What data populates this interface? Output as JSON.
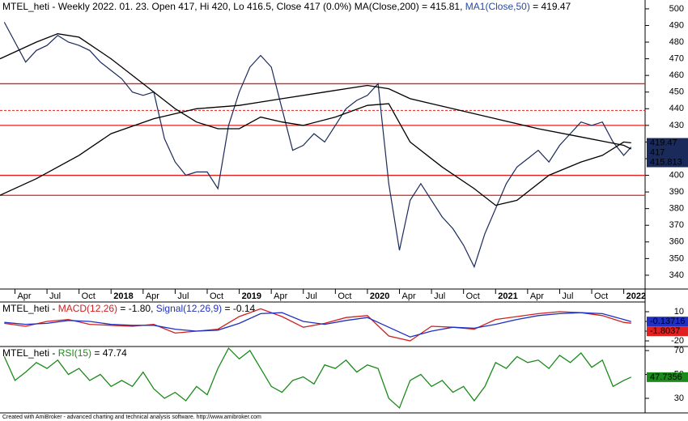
{
  "chart_data": [
    {
      "type": "line",
      "title": [
        "MTEL_heti - Weekly 2022. 01. 23. Open 417, Hi 420, Lo 416.5, Close 417 (0.0%) MA(Close,200) = 415.81, ",
        "MA1(Close,50)",
        " = 419.47"
      ],
      "title_colors": [
        "#000000",
        "#2a4aa0",
        "#000000"
      ],
      "xlim": [
        1.6,
        62
      ],
      "xticks": [
        {
          "value": 3,
          "label": "Apr"
        },
        {
          "value": 6,
          "label": "Jul"
        },
        {
          "value": 9,
          "label": "Oct"
        },
        {
          "value": 12,
          "label": "2018"
        },
        {
          "value": 15,
          "label": "Apr"
        },
        {
          "value": 18,
          "label": "Jul"
        },
        {
          "value": 21,
          "label": "Oct"
        },
        {
          "value": 24,
          "label": "2019"
        },
        {
          "value": 27,
          "label": "Apr"
        },
        {
          "value": 30,
          "label": "Jul"
        },
        {
          "value": 33,
          "label": "Oct"
        },
        {
          "value": 36,
          "label": "2020"
        },
        {
          "value": 39,
          "label": "Apr"
        },
        {
          "value": 42,
          "label": "Jul"
        },
        {
          "value": 45,
          "label": "Oct"
        },
        {
          "value": 48,
          "label": "2021"
        },
        {
          "value": 51,
          "label": "Apr"
        },
        {
          "value": 54,
          "label": "Jul"
        },
        {
          "value": 57,
          "label": "Oct"
        },
        {
          "value": 60,
          "label": "2022"
        }
      ],
      "ylim": [
        331.7,
        505.3
      ],
      "yticks": [
        340,
        350,
        360,
        370,
        380,
        390,
        400,
        410,
        420,
        430,
        440,
        450,
        460,
        470,
        480,
        490,
        500
      ],
      "hlines": [
        455,
        430,
        400,
        388
      ],
      "hline_color": "#e02020",
      "dashed_hlines": [
        439
      ],
      "series": [
        {
          "color": "#1a2a5a",
          "x": [
            2,
            3,
            4,
            5,
            6,
            7,
            8,
            9,
            10,
            11,
            12,
            13,
            14,
            15,
            16,
            17,
            18,
            19,
            20,
            21,
            22,
            23,
            24,
            25,
            26,
            27,
            28,
            29,
            30,
            31,
            32,
            33,
            34,
            35,
            36,
            37,
            38,
            39,
            40,
            41,
            42,
            43,
            44,
            45,
            46,
            47,
            48,
            49,
            50,
            51,
            52,
            53,
            54,
            55,
            56,
            57,
            58,
            59,
            60,
            60.7
          ],
          "values": [
            492,
            480,
            468,
            475,
            478,
            484,
            480,
            478,
            475,
            468,
            463,
            458,
            450,
            448,
            450,
            422,
            408,
            400,
            402,
            402,
            392,
            430,
            450,
            465,
            472,
            465,
            440,
            415,
            418,
            425,
            420,
            430,
            440,
            445,
            448,
            455,
            395,
            355,
            385,
            395,
            385,
            375,
            368,
            358,
            345,
            365,
            380,
            395,
            405,
            410,
            415,
            408,
            418,
            425,
            432,
            430,
            432,
            420,
            412,
            417
          ]
        },
        {
          "color": "#000000",
          "x": [
            1.6,
            5,
            9,
            12,
            16,
            20,
            24,
            28,
            32,
            36,
            38,
            40,
            44,
            48,
            52,
            56,
            60,
            60.7
          ],
          "values": [
            388,
            398,
            412,
            425,
            434,
            440,
            442,
            446,
            450,
            454,
            452,
            446,
            440,
            434,
            428,
            423,
            418,
            415.8
          ]
        },
        {
          "color": "#000000",
          "x": [
            1.6,
            5,
            7,
            9,
            12,
            15,
            18,
            20,
            22,
            24,
            26,
            28,
            30,
            33,
            36,
            38,
            40,
            43,
            46,
            48,
            50,
            53,
            56,
            58,
            60,
            60.7
          ],
          "values": [
            470,
            480,
            485,
            483,
            470,
            455,
            440,
            432,
            428,
            428,
            435,
            432,
            430,
            435,
            442,
            443,
            420,
            405,
            392,
            382,
            385,
            400,
            408,
            412,
            420,
            419.5
          ]
        }
      ],
      "last_values": [
        419.47,
        417,
        415.813
      ],
      "last_value_color": "#1a2a5a"
    },
    {
      "type": "line",
      "title": [
        "MTEL_heti - ",
        "MACD(12,26)",
        " = -1.80, ",
        "Signal(12,26,9)",
        " = -0.14"
      ],
      "title_colors": [
        "#000000",
        "#d02020",
        "#000000",
        "#2030c0",
        "#000000"
      ],
      "xlim": [
        1.6,
        62
      ],
      "ylim": [
        -25.8,
        20
      ],
      "yticks": [
        -20,
        -10,
        0,
        10
      ],
      "series": [
        {
          "color": "#d02020",
          "x": [
            2,
            4,
            6,
            8,
            10,
            12,
            14,
            16,
            18,
            20,
            22,
            24,
            26,
            28,
            30,
            32,
            34,
            36,
            38,
            40,
            42,
            44,
            46,
            48,
            50,
            52,
            54,
            56,
            58,
            60,
            60.7
          ],
          "values": [
            -2,
            -5,
            0,
            2,
            -3,
            -4,
            -5,
            -3,
            -12,
            -10,
            -8,
            5,
            13,
            5,
            -6,
            -2,
            4,
            6,
            -15,
            -20,
            -5,
            -6,
            -8,
            2,
            5,
            8,
            10,
            9,
            6,
            -1,
            -1.8
          ]
        },
        {
          "color": "#2030c0",
          "x": [
            2,
            4,
            6,
            8,
            10,
            12,
            14,
            16,
            18,
            20,
            22,
            24,
            26,
            28,
            30,
            32,
            34,
            36,
            38,
            40,
            42,
            44,
            46,
            48,
            50,
            52,
            54,
            56,
            58,
            60,
            60.7
          ],
          "values": [
            -1,
            -3,
            -2,
            1,
            0,
            -3,
            -4,
            -4,
            -8,
            -10,
            -9,
            -2,
            8,
            9,
            0,
            -3,
            1,
            4,
            -6,
            -16,
            -10,
            -6,
            -7,
            -3,
            2,
            6,
            8,
            9,
            8,
            2,
            -0.14
          ]
        }
      ],
      "last_values": [
        -0.13716,
        -1.8037
      ],
      "last_value_colors": [
        "#2030c0",
        "#e02020"
      ]
    },
    {
      "type": "line",
      "title": [
        "MTEL_heti - ",
        "RSI(15)",
        " = 47.74"
      ],
      "title_colors": [
        "#000000",
        "#1a8a1a",
        "#000000"
      ],
      "xlim": [
        1.6,
        62
      ],
      "ylim": [
        17.8,
        73.4
      ],
      "yticks": [
        30,
        50,
        70
      ],
      "series": [
        {
          "color": "#1a8a1a",
          "x": [
            2,
            3,
            4,
            5,
            6,
            7,
            8,
            9,
            10,
            11,
            12,
            13,
            14,
            15,
            16,
            17,
            18,
            19,
            20,
            21,
            22,
            23,
            24,
            25,
            26,
            27,
            28,
            29,
            30,
            31,
            32,
            33,
            34,
            35,
            36,
            37,
            38,
            39,
            40,
            41,
            42,
            43,
            44,
            45,
            46,
            47,
            48,
            49,
            50,
            51,
            52,
            53,
            54,
            55,
            56,
            57,
            58,
            59,
            60,
            60.7
          ],
          "values": [
            65,
            45,
            52,
            60,
            55,
            62,
            50,
            55,
            45,
            50,
            40,
            45,
            40,
            52,
            38,
            30,
            35,
            28,
            40,
            33,
            55,
            72,
            63,
            70,
            55,
            40,
            35,
            45,
            48,
            42,
            58,
            55,
            62,
            52,
            58,
            55,
            30,
            22,
            45,
            50,
            40,
            45,
            35,
            40,
            28,
            40,
            60,
            55,
            65,
            60,
            62,
            55,
            66,
            60,
            68,
            56,
            62,
            40,
            45,
            47.74
          ]
        }
      ],
      "last_values": [
        47.7356
      ],
      "last_value_colors": [
        "#1a8a1a"
      ]
    }
  ],
  "footer": "Created with AmiBroker - advanced charting and technical analysis software. http://www.amibroker.com"
}
